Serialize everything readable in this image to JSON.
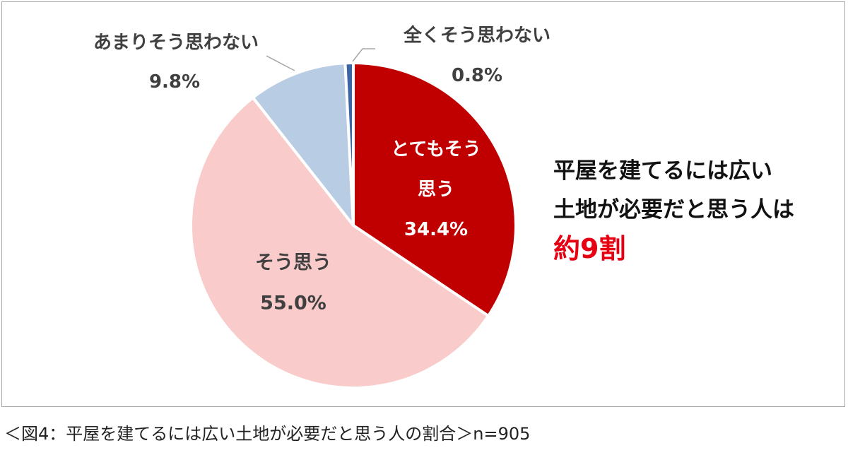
{
  "chart_data": {
    "type": "pie",
    "slices": [
      {
        "label_lines": [
          "とてもそう",
          "思う"
        ],
        "value": 34.4,
        "display": "34.4%",
        "color": "#c00000"
      },
      {
        "label_lines": [
          "そう思う"
        ],
        "value": 55.0,
        "display": "55.0%",
        "color": "#f9cbcb"
      },
      {
        "label_lines": [
          "あまりそう思わない"
        ],
        "value": 9.8,
        "display": "9.8%",
        "color": "#b8cce4"
      },
      {
        "label_lines": [
          "全くそう思わない"
        ],
        "value": 0.8,
        "display": "0.8%",
        "color": "#3a66a8"
      }
    ],
    "start_angle_deg": 0,
    "direction": "clockwise",
    "legend": "none"
  },
  "headline": {
    "line1": "平屋を建てるには広い",
    "line2": "土地が必要だと思う人は",
    "line3": "約9割"
  },
  "caption": "＜図4：平屋を建てるには広い土地が必要だと思う人の割合＞n=905"
}
